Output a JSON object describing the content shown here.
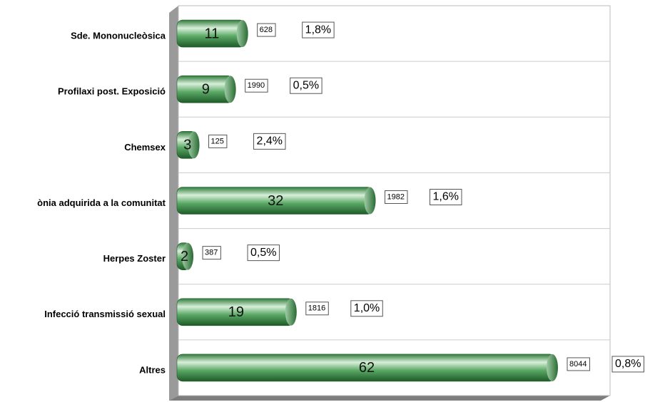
{
  "chart_data": {
    "type": "bar",
    "orientation": "horizontal",
    "categories": [
      "Sde. Mononucleòsica",
      "Profilaxi post. Exposició",
      "Chemsex",
      "ònia adquirida a la comunitat",
      "Herpes Zoster",
      "Infecció transmissió sexual",
      "Altres"
    ],
    "values": [
      11,
      9,
      3,
      32,
      2,
      19,
      62
    ],
    "counts": [
      628,
      1990,
      125,
      1982,
      387,
      1816,
      8044
    ],
    "rates": [
      1.8,
      0.5,
      2.4,
      1.6,
      0.5,
      1.0,
      0.8
    ],
    "rate_labels": [
      "1,8%",
      "0,5%",
      "2,4%",
      "1,6%",
      "0,5%",
      "1,0%",
      "0,8%"
    ],
    "color": "#3d8f4a",
    "grid": true
  }
}
